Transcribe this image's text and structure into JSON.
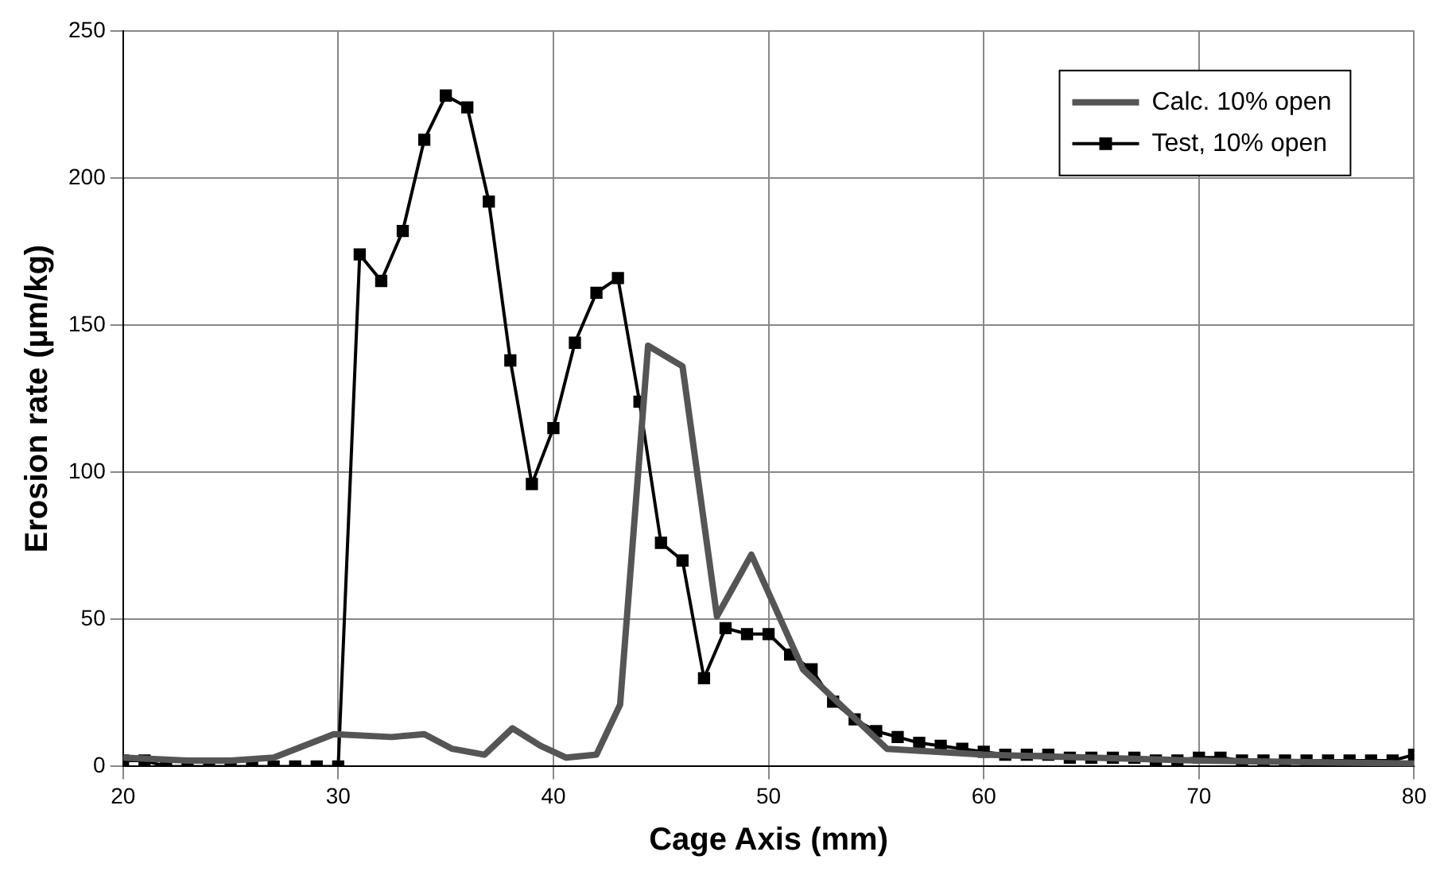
{
  "chart_data": {
    "type": "line",
    "xlabel": "Cage Axis (mm)",
    "ylabel": "Erosion rate (µm/kg)",
    "xlim": [
      20,
      80
    ],
    "xticks": [
      20,
      30,
      40,
      50,
      60,
      70,
      80
    ],
    "ylim": [
      0,
      250
    ],
    "yticks": [
      0,
      50,
      100,
      150,
      200,
      250
    ],
    "grid": true,
    "legend": "top right",
    "series": [
      {
        "name": "Calc. 10% open",
        "color": "#555555",
        "marker": "none",
        "x": [
          20,
          23,
          25,
          27,
          29.8,
          32.5,
          34,
          35.3,
          36.8,
          38.1,
          39.4,
          40.6,
          42,
          43.1,
          44.4,
          46,
          47.6,
          49.2,
          51.6,
          55.5,
          60,
          70,
          80
        ],
        "values": [
          3,
          2,
          2,
          3,
          11,
          10,
          11,
          6,
          4,
          13,
          7,
          3,
          4,
          21,
          143,
          136,
          51,
          72,
          33,
          6,
          4,
          2,
          1
        ]
      },
      {
        "name": "Test, 10% open",
        "color": "#000000",
        "marker": "square",
        "x": [
          20,
          21,
          22,
          23,
          24,
          25,
          26,
          27,
          28,
          29,
          30,
          31,
          32,
          33,
          34,
          35,
          36,
          37,
          38,
          39,
          40,
          41,
          42,
          43,
          44,
          45,
          46,
          47,
          48,
          49,
          50,
          51,
          52,
          53,
          54,
          55,
          56,
          57,
          58,
          59,
          60,
          61,
          62,
          63,
          64,
          65,
          66,
          67,
          68,
          69,
          70,
          71,
          72,
          73,
          74,
          75,
          76,
          77,
          78,
          79,
          80
        ],
        "values": [
          2,
          2,
          0,
          0,
          0,
          0,
          0,
          0,
          0,
          0,
          0,
          174,
          165,
          182,
          213,
          228,
          224,
          192,
          138,
          96,
          115,
          144,
          161,
          166,
          124,
          76,
          70,
          30,
          47,
          45,
          45,
          38,
          33,
          22,
          16,
          12,
          10,
          8,
          7,
          6,
          5,
          4,
          4,
          4,
          3,
          3,
          3,
          3,
          2,
          2,
          3,
          3,
          2,
          2,
          2,
          2,
          2,
          2,
          2,
          2,
          4
        ]
      }
    ]
  }
}
